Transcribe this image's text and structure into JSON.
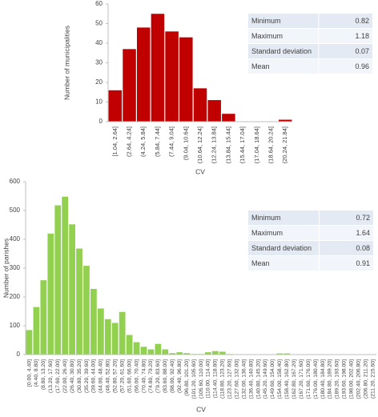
{
  "chart_data": [
    {
      "type": "bar",
      "y_label": "Number of municipalities",
      "x_label": "CV",
      "color": "#c00000",
      "categories": [
        "[1.04, 2.64]",
        "(2.64, 4.24]",
        "(4.24, 5.84]",
        "(5.84, 7.44]",
        "(7.44, 9.04]",
        "(9.04, 10.64]",
        "(10.64, 12.24]",
        "(12.24, 13.84]",
        "(13.84, 15.44]",
        "(15.44, 17.04]",
        "(17.04, 18.64]",
        "(18.64, 20.24]",
        "(20.24, 21.84]"
      ],
      "values": [
        16,
        37,
        48,
        55,
        46,
        43,
        17,
        11,
        4,
        0,
        0,
        0,
        1
      ],
      "ylim": [
        0,
        60
      ],
      "yticks": [
        0,
        10,
        20,
        30,
        40,
        50,
        60
      ],
      "stats": [
        [
          "Minimum",
          "0.82"
        ],
        [
          "Maximum",
          "1.18"
        ],
        [
          "Standard deviation",
          "0.07"
        ],
        [
          "Mean",
          "0.96"
        ]
      ]
    },
    {
      "type": "bar",
      "y_label": "Number of parishes",
      "x_label": "CV",
      "color": "#92d050",
      "categories": [
        "[0.00, 4.40]",
        "(4.40, 8.80]",
        "(8.80, 13.20]",
        "(13.20, 17.60]",
        "(17.60, 22.00]",
        "(22.00, 26.40]",
        "(26.40, 30.80]",
        "(30.80, 35.20]",
        "(35.20, 39.60]",
        "(39.60, 44.00]",
        "(44.00, 48.40]",
        "(48.40, 52.80]",
        "(52.80, 57.20]",
        "(57.20, 61.60]",
        "(61.60, 66.00]",
        "(66.00, 70.40]",
        "(70.40, 74.80]",
        "(74.80, 79.20]",
        "(79.20, 83.60]",
        "(83.60, 88.00]",
        "(88.00, 92.40]",
        "(92.40, 96.80]",
        "(96.80, 101.20]",
        "(101.20, 105.60]",
        "(105.60, 110.00]",
        "(110.00, 114.40]",
        "(114.40, 118.80]",
        "(118.80, 123.20]",
        "(123.20, 127.60]",
        "(127.60, 132.00]",
        "(132.00, 136.40]",
        "(136.40, 140.80]",
        "(140.80, 145.20]",
        "(145.20, 149.60]",
        "(149.60, 154.00]",
        "(154.00, 158.40]",
        "(158.40, 162.80]",
        "(162.80, 167.20]",
        "(167.20, 171.60]",
        "(171.60, 176.00]",
        "(176.00, 180.40]",
        "(180.40, 184.80]",
        "(184.80, 189.20]",
        "(189.20, 193.60]",
        "(193.60, 198.00]",
        "(198.00, 202.40]",
        "(202.40, 206.80]",
        "(206.80, 211.20]",
        "(211.20, 215.60]"
      ],
      "values": [
        85,
        165,
        258,
        420,
        518,
        548,
        452,
        368,
        308,
        228,
        160,
        123,
        110,
        148,
        68,
        43,
        27,
        18,
        37,
        18,
        5,
        8,
        5,
        2,
        2,
        8,
        12,
        10,
        2,
        0,
        1,
        0,
        0,
        0,
        0,
        4,
        4,
        0,
        0,
        0,
        0,
        0,
        0,
        0,
        1,
        0,
        0,
        0,
        0
      ],
      "ylim": [
        0,
        600
      ],
      "yticks": [
        0,
        100,
        200,
        300,
        400,
        500,
        600
      ],
      "stats": [
        [
          "Minimum",
          "0.72"
        ],
        [
          "Maximum",
          "1.64"
        ],
        [
          "Standard deviation",
          "0.08"
        ],
        [
          "Mean",
          "0.91"
        ]
      ]
    }
  ]
}
